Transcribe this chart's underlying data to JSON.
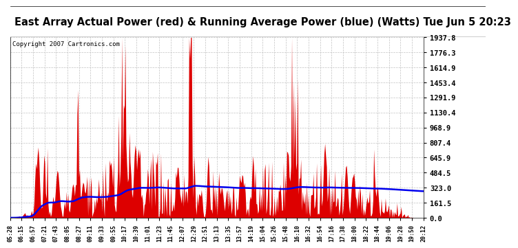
{
  "title": "East Array Actual Power (red) & Running Average Power (blue) (Watts) Tue Jun 5 20:23",
  "copyright": "Copyright 2007 Cartronics.com",
  "ylabel_right_ticks": [
    0.0,
    161.5,
    323.0,
    484.5,
    645.9,
    807.4,
    968.9,
    1130.4,
    1291.9,
    1453.4,
    1614.9,
    1776.3,
    1937.8
  ],
  "ymax": 1937.8,
  "ymin": 0.0,
  "red_color": "#dd0000",
  "blue_color": "#0000ee",
  "bg_color": "#ffffff",
  "grid_color": "#bbbbbb",
  "title_bg": "#cccccc",
  "title_fontsize": 10.5,
  "copyright_fontsize": 7,
  "x_labels": [
    "05:28",
    "06:15",
    "06:57",
    "07:21",
    "07:43",
    "08:05",
    "08:27",
    "09:11",
    "09:33",
    "09:55",
    "10:17",
    "10:39",
    "11:01",
    "11:23",
    "11:45",
    "12:07",
    "12:29",
    "12:51",
    "13:13",
    "13:35",
    "13:57",
    "14:19",
    "15:04",
    "15:26",
    "15:48",
    "16:10",
    "16:32",
    "16:54",
    "17:16",
    "17:38",
    "18:00",
    "18:22",
    "18:44",
    "19:06",
    "19:28",
    "19:50",
    "20:12"
  ],
  "n_points": 500,
  "total_minutes": 895
}
